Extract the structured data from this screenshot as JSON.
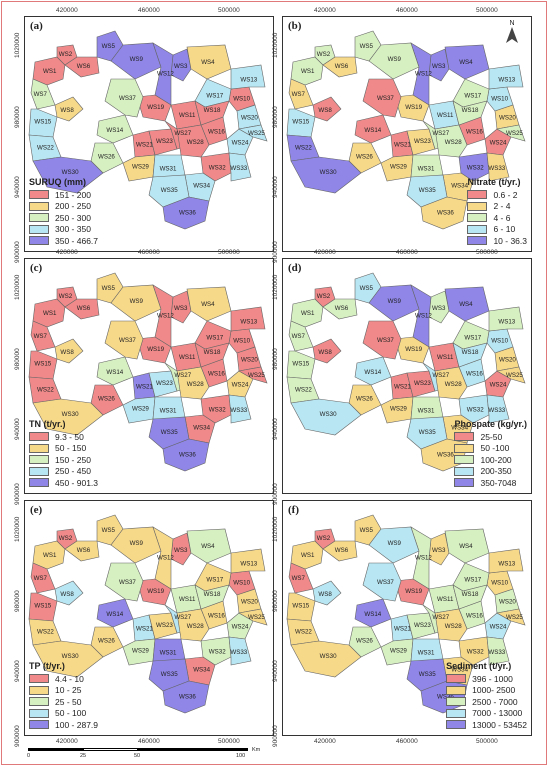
{
  "x_ticks": [
    "420000",
    "460000",
    "500000"
  ],
  "y_ticks": [
    "1020000",
    "980000",
    "940000",
    "900000"
  ],
  "north_label": "N",
  "scale": {
    "labels": [
      "0",
      "25",
      "50",
      "100"
    ],
    "unit": "Km"
  },
  "colors": {
    "red": "#f08a8a",
    "yellow": "#f7d98a",
    "green": "#d7f0c2",
    "cyan": "#b8e6f2",
    "purple": "#8f86e8"
  },
  "panels": [
    {
      "id": "a",
      "label": "(a)",
      "legend_title": "SURUQ (mm)",
      "legend": [
        {
          "text": "151 - 200",
          "color": "#f08a8a"
        },
        {
          "text": "200 - 250",
          "color": "#f7d98a"
        },
        {
          "text": "250 - 300",
          "color": "#d7f0c2"
        },
        {
          "text": "300 - 350",
          "color": "#b8e6f2"
        },
        {
          "text": "350 - 466.7",
          "color": "#8f86e8"
        }
      ]
    },
    {
      "id": "b",
      "label": "(b)",
      "legend_title": "Nitrate (t/yr.)",
      "legend": [
        {
          "text": "0.6 - 2",
          "color": "#f08a8a"
        },
        {
          "text": "2 - 4",
          "color": "#f7d98a"
        },
        {
          "text": "4 - 6",
          "color": "#d7f0c2"
        },
        {
          "text": "6 - 10",
          "color": "#b8e6f2"
        },
        {
          "text": "10 - 36.3",
          "color": "#8f86e8"
        }
      ]
    },
    {
      "id": "c",
      "label": "(c)",
      "legend_title": "TN (t/yr.)",
      "legend": [
        {
          "text": "9.3 - 50",
          "color": "#f08a8a"
        },
        {
          "text": "50 - 150",
          "color": "#f7d98a"
        },
        {
          "text": "150 - 250",
          "color": "#d7f0c2"
        },
        {
          "text": "250 - 450",
          "color": "#b8e6f2"
        },
        {
          "text": "450 - 901.3",
          "color": "#8f86e8"
        }
      ]
    },
    {
      "id": "d",
      "label": "(d)",
      "legend_title": "Phospate (kg/yr.)",
      "legend": [
        {
          "text": "25-50",
          "color": "#f08a8a"
        },
        {
          "text": "50 -100",
          "color": "#f7d98a"
        },
        {
          "text": "100-200",
          "color": "#d7f0c2"
        },
        {
          "text": "200-350",
          "color": "#b8e6f2"
        },
        {
          "text": "350-7048",
          "color": "#8f86e8"
        }
      ]
    },
    {
      "id": "e",
      "label": "(e)",
      "legend_title": "TP (t/yr.)",
      "legend": [
        {
          "text": "4.4 - 10",
          "color": "#f08a8a"
        },
        {
          "text": "10 - 25",
          "color": "#f7d98a"
        },
        {
          "text": "25 - 50",
          "color": "#d7f0c2"
        },
        {
          "text": "50 - 100",
          "color": "#b8e6f2"
        },
        {
          "text": "100 - 287.9",
          "color": "#8f86e8"
        }
      ]
    },
    {
      "id": "f",
      "label": "(f)",
      "legend_title": "Sediment (t/yr.)",
      "legend": [
        {
          "text": "396 - 1000",
          "color": "#f08a8a"
        },
        {
          "text": "1000- 2500",
          "color": "#f7d98a"
        },
        {
          "text": "2500 - 7000",
          "color": "#d7f0c2"
        },
        {
          "text": "7000 - 13000",
          "color": "#b8e6f2"
        },
        {
          "text": "13000 - 53452",
          "color": "#8f86e8"
        }
      ]
    }
  ],
  "watersheds": [
    "WS1",
    "WS2",
    "WS3",
    "WS4",
    "WS5",
    "WS6",
    "WS7",
    "WS8",
    "WS9",
    "WS10",
    "WS11",
    "WS12",
    "WS13",
    "WS14",
    "WS15",
    "WS16",
    "WS17",
    "WS18",
    "WS19",
    "WS20",
    "WS21",
    "WS22",
    "WS23",
    "WS24",
    "WS25",
    "WS26",
    "WS27",
    "WS28",
    "WS29",
    "WS30",
    "WS31",
    "WS32",
    "WS33",
    "WS34",
    "WS35",
    "WS36",
    "WS37"
  ],
  "class_by_panel": {
    "a": [
      1,
      1,
      5,
      2,
      5,
      1,
      3,
      2,
      5,
      1,
      1,
      5,
      4,
      3,
      4,
      1,
      4,
      1,
      1,
      4,
      1,
      4,
      1,
      4,
      4,
      3,
      1,
      1,
      2,
      5,
      4,
      1,
      4,
      4,
      4,
      5,
      3
    ],
    "b": [
      3,
      3,
      5,
      5,
      3,
      2,
      2,
      1,
      3,
      4,
      4,
      5,
      4,
      1,
      4,
      1,
      3,
      3,
      2,
      2,
      1,
      5,
      2,
      1,
      3,
      2,
      3,
      3,
      2,
      5,
      3,
      5,
      2,
      2,
      4,
      2,
      1
    ],
    "c": [
      1,
      1,
      1,
      2,
      2,
      1,
      1,
      2,
      2,
      1,
      1,
      1,
      1,
      3,
      1,
      1,
      1,
      1,
      1,
      1,
      5,
      1,
      4,
      2,
      1,
      1,
      3,
      2,
      4,
      2,
      4,
      1,
      4,
      1,
      5,
      5,
      2
    ],
    "d": [
      3,
      1,
      3,
      5,
      4,
      3,
      3,
      1,
      5,
      4,
      1,
      5,
      3,
      4,
      3,
      4,
      3,
      4,
      2,
      2,
      1,
      3,
      1,
      1,
      2,
      2,
      4,
      2,
      2,
      4,
      3,
      4,
      4,
      2,
      4,
      2,
      1
    ],
    "e": [
      2,
      1,
      1,
      3,
      2,
      2,
      1,
      4,
      2,
      1,
      3,
      2,
      2,
      5,
      1,
      2,
      2,
      3,
      1,
      2,
      4,
      2,
      2,
      3,
      2,
      2,
      4,
      2,
      3,
      2,
      5,
      3,
      4,
      1,
      5,
      5,
      3
    ],
    "f": [
      2,
      1,
      2,
      3,
      2,
      2,
      1,
      4,
      4,
      2,
      3,
      3,
      2,
      5,
      2,
      3,
      3,
      3,
      1,
      3,
      4,
      2,
      3,
      4,
      2,
      3,
      3,
      2,
      3,
      2,
      4,
      2,
      3,
      2,
      5,
      5,
      4
    ]
  }
}
